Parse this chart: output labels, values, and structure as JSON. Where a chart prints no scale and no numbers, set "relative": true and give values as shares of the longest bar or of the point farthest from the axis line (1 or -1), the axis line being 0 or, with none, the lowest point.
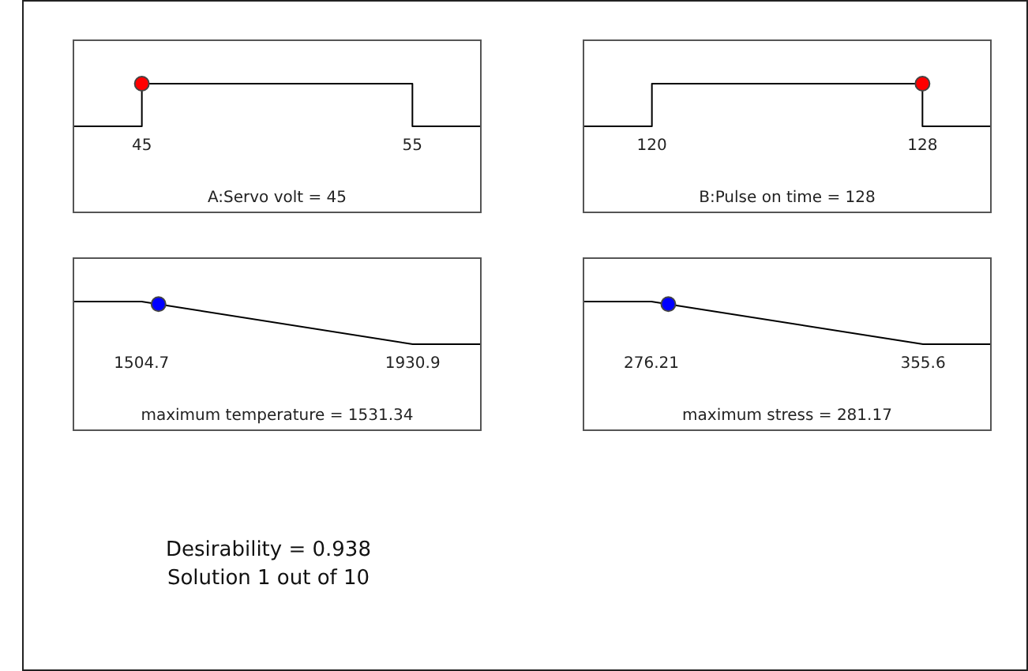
{
  "chart_data": [
    {
      "type": "line",
      "xlabel": "A:Servo volt = 45",
      "relative": true,
      "xlim": [
        42.5,
        57.5
      ],
      "xticks": [
        45,
        55
      ],
      "tick_labels": "x",
      "series": [
        {
          "type": "line",
          "color": "#000000",
          "x": [
            42.5,
            45,
            45,
            55,
            55,
            57.5
          ],
          "values": [
            0,
            0,
            1,
            1,
            0,
            0
          ]
        },
        {
          "type": "scatter",
          "color": "#ff0000",
          "x": [
            45
          ],
          "values": [
            1
          ]
        }
      ]
    },
    {
      "type": "line",
      "xlabel": "B:Pulse on time = 128",
      "relative": true,
      "xlim": [
        118,
        130
      ],
      "xticks": [
        120,
        128
      ],
      "tick_labels": "x",
      "series": [
        {
          "type": "line",
          "color": "#000000",
          "x": [
            118,
            120,
            120,
            128,
            128,
            130
          ],
          "values": [
            0,
            0,
            1,
            1,
            0,
            0
          ]
        },
        {
          "type": "scatter",
          "color": "#ff0000",
          "x": [
            128
          ],
          "values": [
            1
          ]
        }
      ]
    },
    {
      "type": "line",
      "xlabel": "maximum temperature = 1531.34",
      "relative": true,
      "xlim": [
        1398.8,
        2036.8
      ],
      "xticks": [
        1504.7,
        1930.9
      ],
      "tick_labels": "x",
      "series": [
        {
          "type": "line",
          "color": "#000000",
          "x": [
            1398.8,
            1504.7,
            1930.9,
            2036.8
          ],
          "values": [
            1,
            1,
            0,
            0
          ]
        },
        {
          "type": "scatter",
          "color": "#0000ff",
          "x": [
            1531.34
          ],
          "values": [
            0.94
          ]
        }
      ]
    },
    {
      "type": "line",
      "xlabel": "maximum stress = 281.17",
      "relative": true,
      "xlim": [
        256.6,
        375.2
      ],
      "xticks": [
        276.21,
        355.6
      ],
      "tick_labels": "x",
      "series": [
        {
          "type": "line",
          "color": "#000000",
          "x": [
            256.6,
            276.21,
            355.6,
            375.2
          ],
          "values": [
            1,
            1,
            0,
            0
          ]
        },
        {
          "type": "scatter",
          "color": "#0000ff",
          "x": [
            281.17
          ],
          "values": [
            0.94
          ]
        }
      ]
    },
    {
      "type": "other",
      "annotations": [
        "Desirability = 0.938",
        "Solution 1 out of 10"
      ]
    }
  ]
}
